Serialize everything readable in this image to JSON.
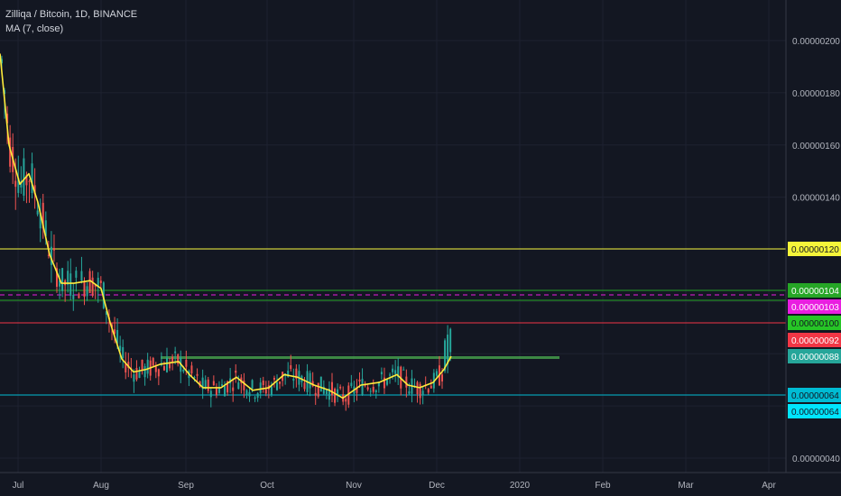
{
  "legend": {
    "title": "Zilliqa / Bitcoin, 1D, BINANCE",
    "indicator": "MA (7, close)"
  },
  "chart_data": {
    "type": "candlestick",
    "title": "Zilliqa / Bitcoin, 1D, BINANCE",
    "ylim": [
      3.6e-07,
      2.05e-06
    ],
    "y_ticks": [
      "0.00000200",
      "0.00000180",
      "0.00000160",
      "0.00000140",
      "0.00000040"
    ],
    "x_ticks": [
      "Jul",
      "Aug",
      "Sep",
      "Oct",
      "Nov",
      "Dec",
      "2020",
      "Feb",
      "Mar",
      "Apr"
    ],
    "series": [
      {
        "name": "MA (7, close)",
        "color": "#ffeb3b",
        "points": [
          [
            0,
            1.95e-06
          ],
          [
            10,
            1.6e-06
          ],
          [
            22,
            1.45e-06
          ],
          [
            32,
            1.49e-06
          ],
          [
            42,
            1.38e-06
          ],
          [
            55,
            1.18e-06
          ],
          [
            68,
            1.07e-06
          ],
          [
            82,
            1.07e-06
          ],
          [
            100,
            1.08e-06
          ],
          [
            112,
            1.05e-06
          ],
          [
            122,
            9.2e-07
          ],
          [
            135,
            7.8e-07
          ],
          [
            148,
            7.3e-07
          ],
          [
            162,
            7.4e-07
          ],
          [
            178,
            7.6e-07
          ],
          [
            198,
            7.7e-07
          ],
          [
            210,
            7.2e-07
          ],
          [
            225,
            6.7e-07
          ],
          [
            245,
            6.7e-07
          ],
          [
            262,
            7.1e-07
          ],
          [
            280,
            6.6e-07
          ],
          [
            298,
            6.7e-07
          ],
          [
            315,
            7.2e-07
          ],
          [
            330,
            7.1e-07
          ],
          [
            348,
            6.8e-07
          ],
          [
            365,
            6.6e-07
          ],
          [
            380,
            6.3e-07
          ],
          [
            400,
            6.8e-07
          ],
          [
            420,
            6.9e-07
          ],
          [
            440,
            7.2e-07
          ],
          [
            452,
            6.8e-07
          ],
          [
            465,
            6.7e-07
          ],
          [
            480,
            6.9e-07
          ],
          [
            492,
            7.4e-07
          ],
          [
            500,
            7.9e-07
          ]
        ]
      }
    ],
    "price_levels": [
      {
        "label": "0.00000120",
        "color": "#f5f53a",
        "text": "#131722",
        "box": true,
        "line": true
      },
      {
        "label": "0.00000104",
        "color": "#26a626",
        "text": "#ffffff",
        "box": true,
        "line": true
      },
      {
        "label": "0.00000103",
        "color": "#e91ee0",
        "text": "#ffffff",
        "box": true,
        "line": false,
        "dashed": true
      },
      {
        "label": "0.00000100",
        "color": "#26c626",
        "text": "#131722",
        "box": true,
        "line": false
      },
      {
        "label": "0.00000092",
        "color": "#f23645",
        "text": "#ffffff",
        "box": true,
        "line": true
      },
      {
        "label": "0.00000088",
        "color": "#26a69a",
        "text": "#ffffff",
        "box": true,
        "line": false
      },
      {
        "label": "0.00000064",
        "color": "#00bcd4",
        "text": "#131722",
        "box": true,
        "line": true
      },
      {
        "label": "0.00000064",
        "color": "#00e5ff",
        "text": "#131722",
        "box": true,
        "line": false
      }
    ],
    "zone": {
      "color": "#4caf50",
      "from_x": 178,
      "to_x": 620
    }
  },
  "colors": {
    "background": "#131722",
    "up": "#26a69a",
    "down": "#ef5350",
    "axis_text": "#b2b5be",
    "grid": "#1e2230"
  }
}
